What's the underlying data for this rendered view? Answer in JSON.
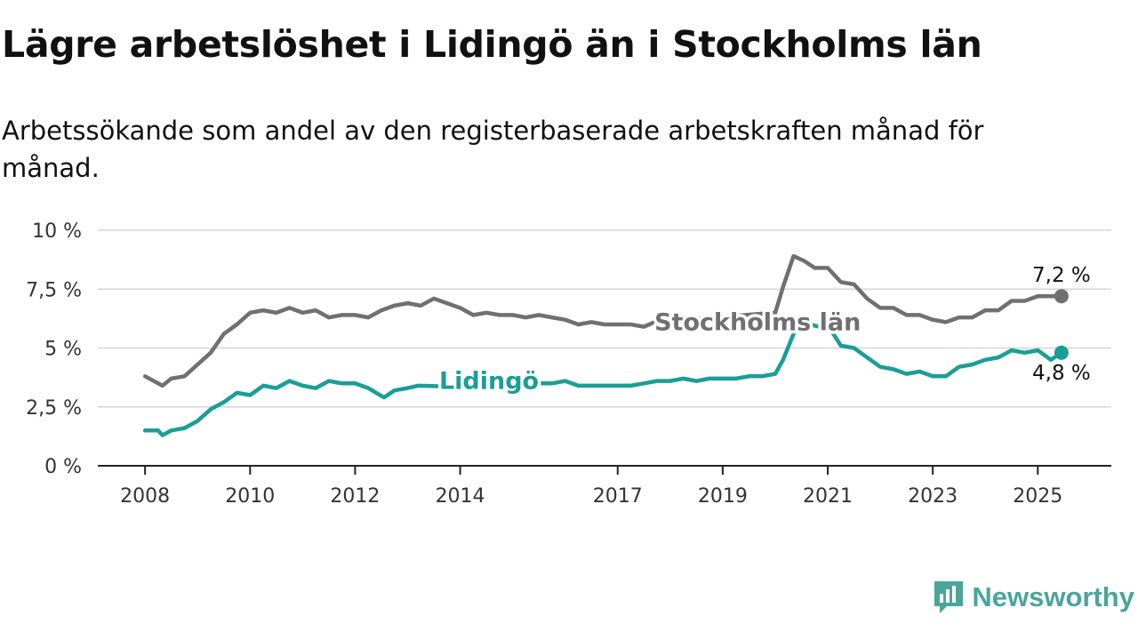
{
  "header": {
    "title": "Lägre arbetslöshet i Lidingö än i Stockholms län",
    "subtitle": "Arbetssökande som andel av den registerbaserade arbetskraften månad för månad."
  },
  "brand": {
    "name": "Newsworthy",
    "icon": "newsworthy-logo-icon",
    "color": "#4aa59b"
  },
  "chart_data": {
    "type": "line",
    "grid": "horizontal",
    "ylim": [
      0,
      10
    ],
    "xlim": [
      2007.1,
      2026.4
    ],
    "y_ticks": [
      {
        "value": 0,
        "label": "0 %"
      },
      {
        "value": 2.5,
        "label": "2,5 %"
      },
      {
        "value": 5,
        "label": "5 %"
      },
      {
        "value": 7.5,
        "label": "7,5 %"
      },
      {
        "value": 10,
        "label": "10 %"
      }
    ],
    "x_ticks": [
      {
        "value": 2008,
        "label": "2008"
      },
      {
        "value": 2010,
        "label": "2010"
      },
      {
        "value": 2012,
        "label": "2012"
      },
      {
        "value": 2014,
        "label": "2014"
      },
      {
        "value": 2017,
        "label": "2017"
      },
      {
        "value": 2019,
        "label": "2019"
      },
      {
        "value": 2021,
        "label": "2021"
      },
      {
        "value": 2023,
        "label": "2023"
      },
      {
        "value": 2025,
        "label": "2025"
      }
    ],
    "series": [
      {
        "name": "Stockholms län",
        "color": "#707070",
        "label_position": [
          2017.7,
          6.1
        ],
        "end_label": "7,2 %",
        "points": [
          [
            2008.0,
            3.8
          ],
          [
            2008.33,
            3.4
          ],
          [
            2008.5,
            3.7
          ],
          [
            2008.75,
            3.8
          ],
          [
            2009.0,
            4.3
          ],
          [
            2009.25,
            4.8
          ],
          [
            2009.5,
            5.6
          ],
          [
            2009.75,
            6.0
          ],
          [
            2010.0,
            6.5
          ],
          [
            2010.25,
            6.6
          ],
          [
            2010.5,
            6.5
          ],
          [
            2010.75,
            6.7
          ],
          [
            2011.0,
            6.5
          ],
          [
            2011.25,
            6.6
          ],
          [
            2011.5,
            6.3
          ],
          [
            2011.75,
            6.4
          ],
          [
            2012.0,
            6.4
          ],
          [
            2012.25,
            6.3
          ],
          [
            2012.5,
            6.6
          ],
          [
            2012.75,
            6.8
          ],
          [
            2013.0,
            6.9
          ],
          [
            2013.25,
            6.8
          ],
          [
            2013.5,
            7.1
          ],
          [
            2013.75,
            6.9
          ],
          [
            2014.0,
            6.7
          ],
          [
            2014.25,
            6.4
          ],
          [
            2014.5,
            6.5
          ],
          [
            2014.75,
            6.4
          ],
          [
            2015.0,
            6.4
          ],
          [
            2015.25,
            6.3
          ],
          [
            2015.5,
            6.4
          ],
          [
            2015.75,
            6.3
          ],
          [
            2016.0,
            6.2
          ],
          [
            2016.25,
            6.0
          ],
          [
            2016.5,
            6.1
          ],
          [
            2016.75,
            6.0
          ],
          [
            2017.0,
            6.0
          ],
          [
            2017.25,
            6.0
          ],
          [
            2017.5,
            5.9
          ],
          [
            2017.7,
            6.1
          ],
          [
            2020.0,
            6.5
          ],
          [
            2020.15,
            7.6
          ],
          [
            2020.35,
            8.9
          ],
          [
            2020.55,
            8.7
          ],
          [
            2020.75,
            8.4
          ],
          [
            2021.0,
            8.4
          ],
          [
            2021.25,
            7.8
          ],
          [
            2021.5,
            7.7
          ],
          [
            2021.75,
            7.1
          ],
          [
            2022.0,
            6.7
          ],
          [
            2022.25,
            6.7
          ],
          [
            2022.5,
            6.4
          ],
          [
            2022.75,
            6.4
          ],
          [
            2023.0,
            6.2
          ],
          [
            2023.25,
            6.1
          ],
          [
            2023.5,
            6.3
          ],
          [
            2023.75,
            6.3
          ],
          [
            2024.0,
            6.6
          ],
          [
            2024.25,
            6.6
          ],
          [
            2024.5,
            7.0
          ],
          [
            2024.75,
            7.0
          ],
          [
            2025.0,
            7.2
          ],
          [
            2025.45,
            7.2
          ]
        ]
      },
      {
        "name": "Lidingö",
        "color": "#1a9e96",
        "label_position": [
          2013.6,
          3.6
        ],
        "end_label": "4,8 %",
        "points": [
          [
            2008.0,
            1.5
          ],
          [
            2008.25,
            1.5
          ],
          [
            2008.33,
            1.3
          ],
          [
            2008.5,
            1.5
          ],
          [
            2008.75,
            1.6
          ],
          [
            2009.0,
            1.9
          ],
          [
            2009.25,
            2.4
          ],
          [
            2009.5,
            2.7
          ],
          [
            2009.75,
            3.1
          ],
          [
            2010.0,
            3.0
          ],
          [
            2010.25,
            3.4
          ],
          [
            2010.5,
            3.3
          ],
          [
            2010.75,
            3.6
          ],
          [
            2011.0,
            3.4
          ],
          [
            2011.25,
            3.3
          ],
          [
            2011.5,
            3.6
          ],
          [
            2011.75,
            3.5
          ],
          [
            2012.0,
            3.5
          ],
          [
            2012.25,
            3.3
          ],
          [
            2012.4,
            3.1
          ],
          [
            2012.55,
            2.9
          ],
          [
            2012.75,
            3.2
          ],
          [
            2013.0,
            3.3
          ],
          [
            2013.2,
            3.4
          ],
          [
            2015.0,
            3.3
          ],
          [
            2015.25,
            3.4
          ],
          [
            2015.5,
            3.5
          ],
          [
            2015.75,
            3.5
          ],
          [
            2016.0,
            3.6
          ],
          [
            2016.25,
            3.4
          ],
          [
            2016.5,
            3.4
          ],
          [
            2016.75,
            3.4
          ],
          [
            2017.0,
            3.4
          ],
          [
            2017.25,
            3.4
          ],
          [
            2017.5,
            3.5
          ],
          [
            2017.75,
            3.6
          ],
          [
            2018.0,
            3.6
          ],
          [
            2018.25,
            3.7
          ],
          [
            2018.5,
            3.6
          ],
          [
            2018.75,
            3.7
          ],
          [
            2019.0,
            3.7
          ],
          [
            2019.25,
            3.7
          ],
          [
            2019.5,
            3.8
          ],
          [
            2019.75,
            3.8
          ],
          [
            2020.0,
            3.9
          ],
          [
            2020.15,
            4.5
          ],
          [
            2020.35,
            5.6
          ],
          [
            2020.45,
            6.1
          ],
          [
            2021.05,
            5.8
          ],
          [
            2021.25,
            5.1
          ],
          [
            2021.5,
            5.0
          ],
          [
            2021.75,
            4.6
          ],
          [
            2022.0,
            4.2
          ],
          [
            2022.25,
            4.1
          ],
          [
            2022.5,
            3.9
          ],
          [
            2022.75,
            4.0
          ],
          [
            2023.0,
            3.8
          ],
          [
            2023.25,
            3.8
          ],
          [
            2023.5,
            4.2
          ],
          [
            2023.75,
            4.3
          ],
          [
            2024.0,
            4.5
          ],
          [
            2024.25,
            4.6
          ],
          [
            2024.5,
            4.9
          ],
          [
            2024.75,
            4.8
          ],
          [
            2025.0,
            4.9
          ],
          [
            2025.25,
            4.5
          ],
          [
            2025.45,
            4.8
          ]
        ]
      }
    ]
  }
}
